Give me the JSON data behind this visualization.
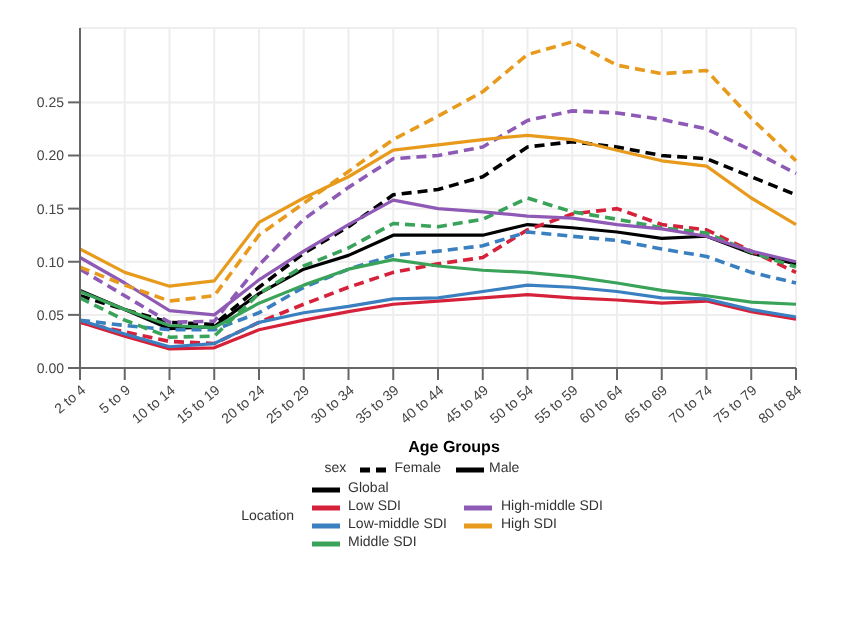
{
  "chart_data": {
    "type": "line",
    "xlabel": "Age Groups",
    "legend_title": "Location",
    "legend": "bottom",
    "grid": true,
    "marker": "none",
    "categories": [
      "2 to 4",
      "5 to 9",
      "10 to 14",
      "15 to 19",
      "20 to 24",
      "25 to 29",
      "30 to 34",
      "35 to 39",
      "40 to 44",
      "45 to 49",
      "50 to 54",
      "55 to 59",
      "60 to 64",
      "65 to 69",
      "70 to 74",
      "75 to 79",
      "80 to 84"
    ],
    "ylim": [
      0,
      0.32
    ],
    "yticks": [
      {
        "value": 0,
        "label": "0.00"
      },
      {
        "value": 0.05,
        "label": "0.05"
      },
      {
        "value": 0.1,
        "label": "0.10"
      },
      {
        "value": 0.15,
        "label": "0.15"
      },
      {
        "value": 0.2,
        "label": "0.20"
      },
      {
        "value": 0.25,
        "label": "0.25"
      }
    ],
    "annotations": [
      "sex",
      "Female",
      "Male"
    ],
    "series": [
      {
        "color": "#000000",
        "line_style": "dashed",
        "values": [
          0.068,
          0.055,
          0.043,
          0.041,
          0.076,
          0.108,
          0.133,
          0.163,
          0.168,
          0.18,
          0.208,
          0.213,
          0.208,
          0.2,
          0.197,
          0.18,
          0.163
        ]
      },
      {
        "name": "Global",
        "color": "#000000",
        "line_style": "solid",
        "values": [
          0.073,
          0.055,
          0.037,
          0.039,
          0.07,
          0.093,
          0.106,
          0.125,
          0.125,
          0.125,
          0.135,
          0.132,
          0.128,
          0.122,
          0.124,
          0.108,
          0.098
        ]
      },
      {
        "color": "#d6213a",
        "line_style": "dashed",
        "values": [
          0.043,
          0.034,
          0.025,
          0.023,
          0.043,
          0.06,
          0.076,
          0.09,
          0.098,
          0.104,
          0.13,
          0.145,
          0.15,
          0.135,
          0.13,
          0.11,
          0.09
        ]
      },
      {
        "name": "Low SDI",
        "color": "#d6213a",
        "line_style": "solid",
        "values": [
          0.043,
          0.03,
          0.018,
          0.019,
          0.036,
          0.045,
          0.053,
          0.06,
          0.063,
          0.066,
          0.069,
          0.066,
          0.064,
          0.061,
          0.063,
          0.053,
          0.046
        ]
      },
      {
        "color": "#3a7fc0",
        "line_style": "dashed",
        "values": [
          0.045,
          0.04,
          0.036,
          0.036,
          0.052,
          0.076,
          0.093,
          0.106,
          0.11,
          0.115,
          0.128,
          0.124,
          0.12,
          0.112,
          0.105,
          0.09,
          0.08
        ]
      },
      {
        "name": "Low-middle SDI",
        "color": "#3a7fc0",
        "line_style": "solid",
        "values": [
          0.045,
          0.032,
          0.02,
          0.023,
          0.043,
          0.052,
          0.058,
          0.065,
          0.066,
          0.072,
          0.078,
          0.076,
          0.072,
          0.066,
          0.065,
          0.055,
          0.048
        ]
      },
      {
        "color": "#3aa35a",
        "line_style": "dashed",
        "values": [
          0.066,
          0.045,
          0.029,
          0.03,
          0.07,
          0.096,
          0.113,
          0.136,
          0.133,
          0.14,
          0.16,
          0.147,
          0.14,
          0.132,
          0.127,
          0.109,
          0.095
        ]
      },
      {
        "name": "Middle SDI",
        "color": "#3aa35a",
        "line_style": "solid",
        "values": [
          0.072,
          0.055,
          0.04,
          0.038,
          0.061,
          0.078,
          0.093,
          0.102,
          0.096,
          0.092,
          0.09,
          0.086,
          0.08,
          0.073,
          0.068,
          0.062,
          0.06
        ]
      },
      {
        "color": "#8e5ab5",
        "line_style": "dashed",
        "values": [
          0.093,
          0.068,
          0.043,
          0.044,
          0.097,
          0.14,
          0.17,
          0.197,
          0.2,
          0.208,
          0.233,
          0.242,
          0.24,
          0.234,
          0.225,
          0.205,
          0.183
        ]
      },
      {
        "name": "High-middle SDI",
        "color": "#8e5ab5",
        "line_style": "solid",
        "values": [
          0.104,
          0.08,
          0.054,
          0.05,
          0.083,
          0.11,
          0.135,
          0.158,
          0.15,
          0.147,
          0.143,
          0.141,
          0.135,
          0.131,
          0.124,
          0.11,
          0.1
        ]
      },
      {
        "color": "#e89a1c",
        "line_style": "dashed",
        "values": [
          0.095,
          0.078,
          0.063,
          0.068,
          0.125,
          0.155,
          0.185,
          0.215,
          0.237,
          0.26,
          0.295,
          0.307,
          0.285,
          0.277,
          0.28,
          0.235,
          0.195
        ]
      },
      {
        "name": "High SDI",
        "color": "#e89a1c",
        "line_style": "solid",
        "values": [
          0.112,
          0.09,
          0.077,
          0.082,
          0.137,
          0.16,
          0.18,
          0.205,
          0.21,
          0.215,
          0.219,
          0.215,
          0.205,
          0.195,
          0.19,
          0.16,
          0.135
        ]
      }
    ]
  }
}
